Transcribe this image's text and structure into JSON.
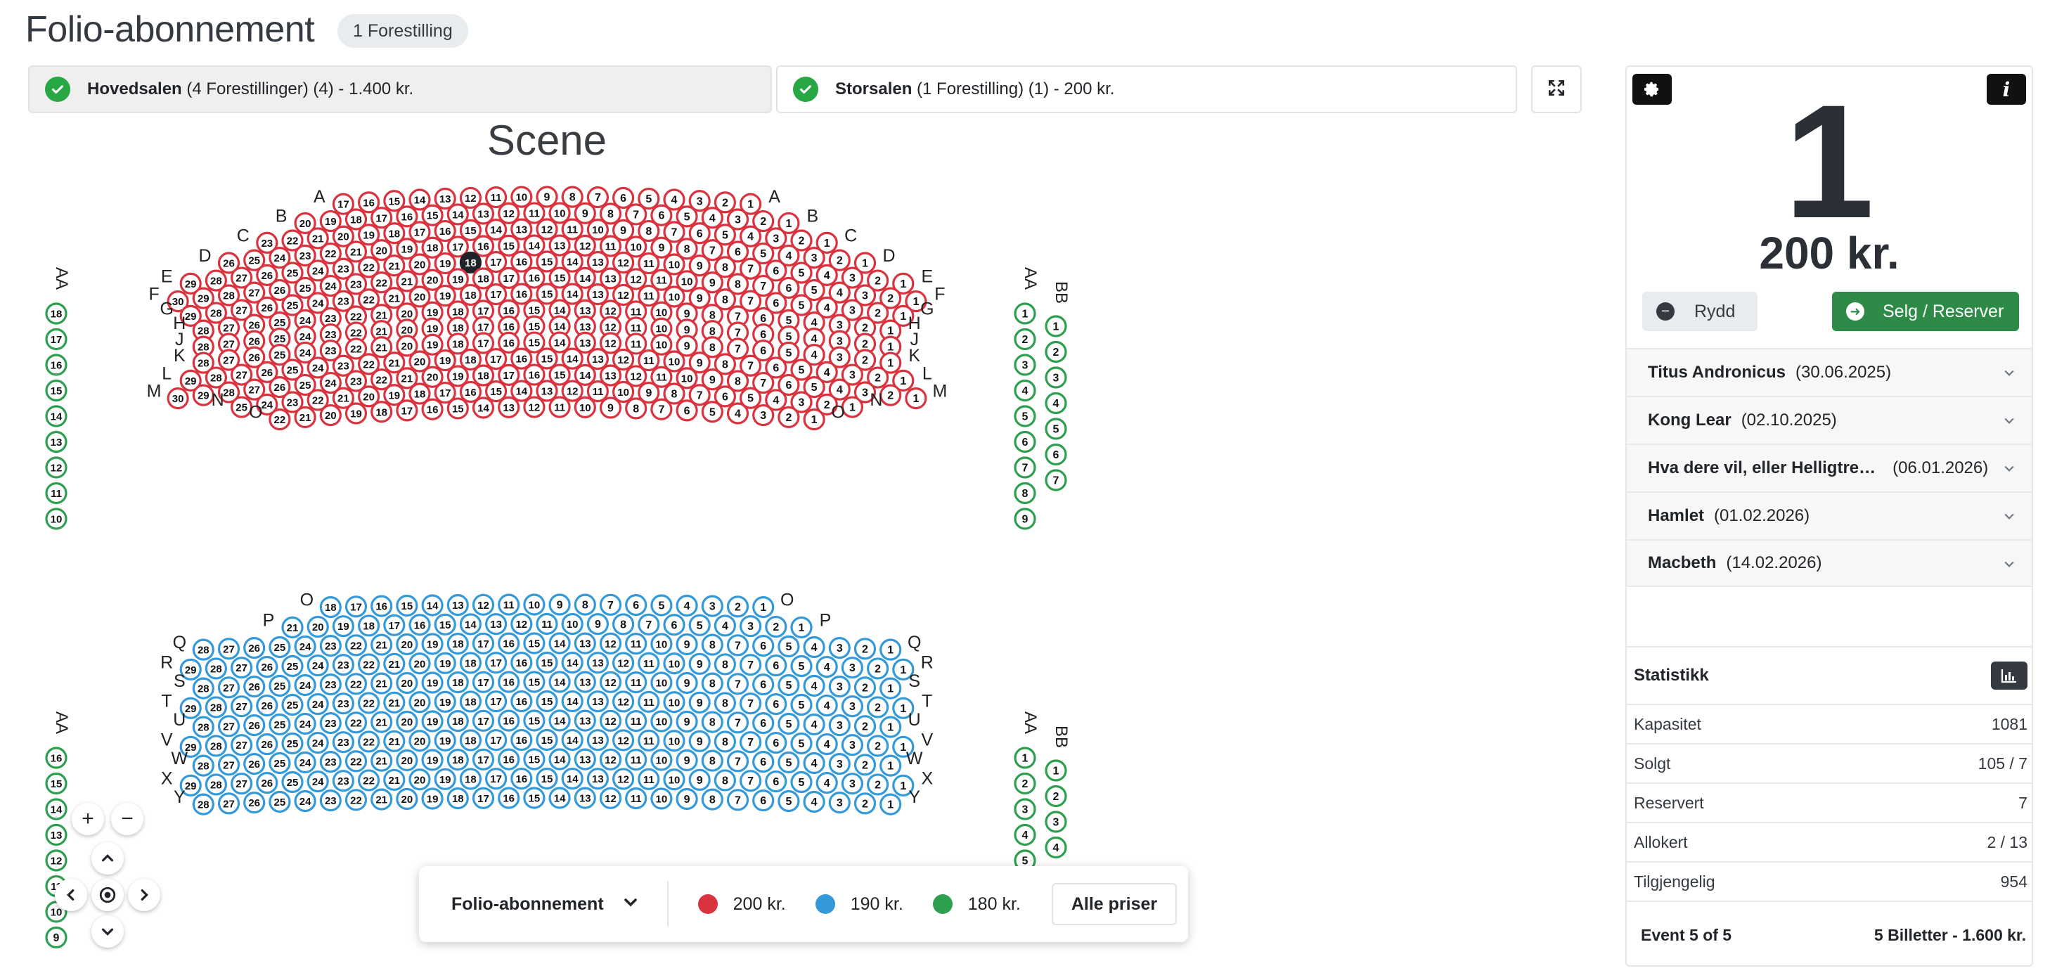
{
  "page": {
    "title": "Folio-abonnement",
    "badge": "1 Forestilling"
  },
  "halls": [
    {
      "name": "Hovedsalen",
      "detail": " (4 Forestillinger) (4) - 1.400 kr."
    },
    {
      "name": "Storsalen",
      "detail": " (1 Forestilling) (1) - 200 kr."
    }
  ],
  "stage_label": "Scene",
  "colors": {
    "red": "#d9333f",
    "blue": "#3399d9",
    "green": "#2e9e4f",
    "selected": "#1f2329"
  },
  "seatmap": {
    "selected_seat": {
      "row": "E",
      "number": "18"
    },
    "left_wing_label": "AA",
    "right_wing_labels": [
      "AA",
      "BB"
    ],
    "upper_rows": [
      {
        "label": "A",
        "count": 17
      },
      {
        "label": "B",
        "count": 20
      },
      {
        "label": "C",
        "count": 23
      },
      {
        "label": "D",
        "count": 26
      },
      {
        "label": "E",
        "count": 29
      },
      {
        "label": "F",
        "count": 30
      },
      {
        "label": "G",
        "count": 29
      },
      {
        "label": "H",
        "count": 28
      },
      {
        "label": "J",
        "count": 28
      },
      {
        "label": "K",
        "count": 28
      },
      {
        "label": "L",
        "count": 29
      },
      {
        "label": "M",
        "count": 30
      },
      {
        "label": "N",
        "count": 25
      },
      {
        "label": "O",
        "count": 22
      }
    ],
    "lower_rows": [
      {
        "label": "O",
        "count": 18
      },
      {
        "label": "P",
        "count": 21
      },
      {
        "label": "Q",
        "count": 28
      },
      {
        "label": "R",
        "count": 29
      },
      {
        "label": "S",
        "count": 28
      },
      {
        "label": "T",
        "count": 29
      },
      {
        "label": "U",
        "count": 28
      },
      {
        "label": "V",
        "count": 29
      },
      {
        "label": "W",
        "count": 28
      },
      {
        "label": "X",
        "count": 29
      },
      {
        "label": "Y",
        "count": 28
      }
    ],
    "upper_left_wing": [
      "18",
      "17",
      "16",
      "15",
      "14",
      "13",
      "12",
      "11",
      "10"
    ],
    "upper_right_aa": [
      "1",
      "2",
      "3",
      "4",
      "5",
      "6",
      "7",
      "8",
      "9"
    ],
    "upper_right_bb": [
      "1",
      "2",
      "3",
      "4",
      "5",
      "6",
      "7"
    ],
    "lower_left_wing": [
      "16",
      "15",
      "14",
      "13",
      "12",
      "11",
      "10",
      "9"
    ],
    "lower_right_aa": [
      "1",
      "2",
      "3",
      "4",
      "5"
    ],
    "lower_right_bb": [
      "1",
      "2",
      "3",
      "4"
    ]
  },
  "legend": {
    "selector": "Folio-abonnement",
    "items": [
      {
        "label": "200 kr.",
        "color": "#d9333f"
      },
      {
        "label": "190 kr.",
        "color": "#3399d9"
      },
      {
        "label": "180 kr.",
        "color": "#2e9e4f"
      }
    ],
    "all_prices": "Alle priser"
  },
  "cart": {
    "count": "1",
    "total": "200 kr.",
    "clear_label": "Rydd",
    "sell_label": "Selg / Reserver"
  },
  "events": [
    {
      "name": "Titus Andronicus",
      "date": "(30.06.2025)"
    },
    {
      "name": "Kong Lear",
      "date": "(02.10.2025)"
    },
    {
      "name": "Hva dere vil, eller Helligtre…",
      "date": "(06.01.2026)"
    },
    {
      "name": "Hamlet",
      "date": "(01.02.2026)"
    },
    {
      "name": "Macbeth",
      "date": "(14.02.2026)"
    }
  ],
  "stats": {
    "title": "Statistikk",
    "rows": [
      {
        "label": "Kapasitet",
        "value": "1081"
      },
      {
        "label": "Solgt",
        "value": "105 / 7"
      },
      {
        "label": "Reservert",
        "value": "7"
      },
      {
        "label": "Allokert",
        "value": "2 / 13"
      },
      {
        "label": "Tilgjengelig",
        "value": "954"
      }
    ],
    "footer_left": "Event 5 of 5",
    "footer_right": "5 Billetter - 1.600 kr."
  }
}
